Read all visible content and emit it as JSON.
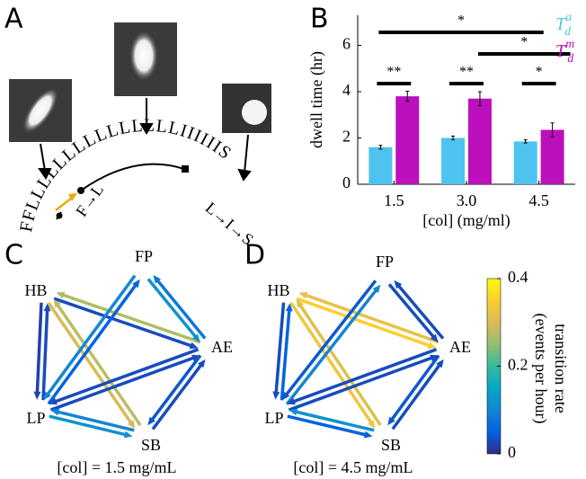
{
  "panel_labels": [
    "A",
    "B",
    "C",
    "D"
  ],
  "panel_a": {
    "sequence": "FFLLLLLLLLLLLLLLLIIIIIIS",
    "transitions": [
      "F→L",
      "L→I→S"
    ]
  },
  "chart_data": {
    "type": "bar",
    "ylabel": "dwell time (hr)",
    "xlabel": "[col] (mg/ml)",
    "categories": [
      "1.5",
      "3.0",
      "4.5"
    ],
    "series": [
      {
        "name": "T",
        "name_sub": "d",
        "name_sup": "a",
        "color": "#4fc3ef",
        "values": [
          1.6,
          2.0,
          1.85
        ],
        "errors": [
          0.08,
          0.08,
          0.07
        ]
      },
      {
        "name": "T",
        "name_sub": "d",
        "name_sup": "m",
        "color": "#bb10bb",
        "values": [
          3.8,
          3.7,
          2.35
        ],
        "errors": [
          0.22,
          0.3,
          0.3
        ]
      }
    ],
    "ylim": [
      0,
      7.3
    ],
    "yticks": [
      0,
      2,
      4,
      6
    ],
    "significance": [
      {
        "label": "*",
        "bars": [
          [
            0,
            0
          ],
          [
            2,
            0
          ]
        ]
      },
      {
        "label": "*",
        "bars": [
          [
            1,
            1
          ],
          [
            2,
            1
          ]
        ]
      },
      {
        "label": "**",
        "bars": [
          [
            0,
            0
          ],
          [
            0,
            1
          ]
        ]
      },
      {
        "label": "**",
        "bars": [
          [
            1,
            0
          ],
          [
            1,
            1
          ]
        ]
      },
      {
        "label": "*",
        "bars": [
          [
            2,
            0
          ],
          [
            2,
            1
          ]
        ]
      }
    ]
  },
  "networks": {
    "nodes": [
      "HB",
      "FP",
      "AE",
      "SB",
      "LP"
    ],
    "colormap": "parula",
    "clim": [
      0,
      0.4
    ],
    "cticks": [
      0,
      0.2,
      0.4
    ],
    "colorbar_label": [
      "transition rate",
      "(events per hour)"
    ],
    "panels": [
      {
        "caption": "[col] = 1.5 mg/mL",
        "edges": [
          [
            0,
            4,
            0.02
          ],
          [
            4,
            0,
            0.03
          ],
          [
            0,
            2,
            0.03
          ],
          [
            2,
            0,
            0.27
          ],
          [
            0,
            3,
            0.3
          ],
          [
            3,
            0,
            0.28
          ],
          [
            4,
            1,
            0.05
          ],
          [
            1,
            4,
            0.1
          ],
          [
            4,
            2,
            0.03
          ],
          [
            2,
            4,
            0.03
          ],
          [
            4,
            3,
            0.12
          ],
          [
            3,
            4,
            0.1
          ],
          [
            1,
            2,
            0.12
          ],
          [
            2,
            1,
            0.08
          ],
          [
            2,
            3,
            0.04
          ],
          [
            3,
            2,
            0.03
          ]
        ]
      },
      {
        "caption": "[col] = 4.5 mg/mL",
        "edges": [
          [
            0,
            4,
            0.03
          ],
          [
            4,
            0,
            0.05
          ],
          [
            0,
            2,
            0.35
          ],
          [
            2,
            0,
            0.32
          ],
          [
            0,
            3,
            0.33
          ],
          [
            3,
            0,
            0.31
          ],
          [
            4,
            1,
            0.1
          ],
          [
            1,
            4,
            0.04
          ],
          [
            4,
            2,
            0.03
          ],
          [
            2,
            4,
            0.03
          ],
          [
            4,
            3,
            0.05
          ],
          [
            3,
            4,
            0.12
          ],
          [
            1,
            2,
            0.03
          ],
          [
            2,
            1,
            0.03
          ],
          [
            2,
            3,
            0.04
          ],
          [
            3,
            2,
            0.03
          ]
        ]
      }
    ]
  }
}
